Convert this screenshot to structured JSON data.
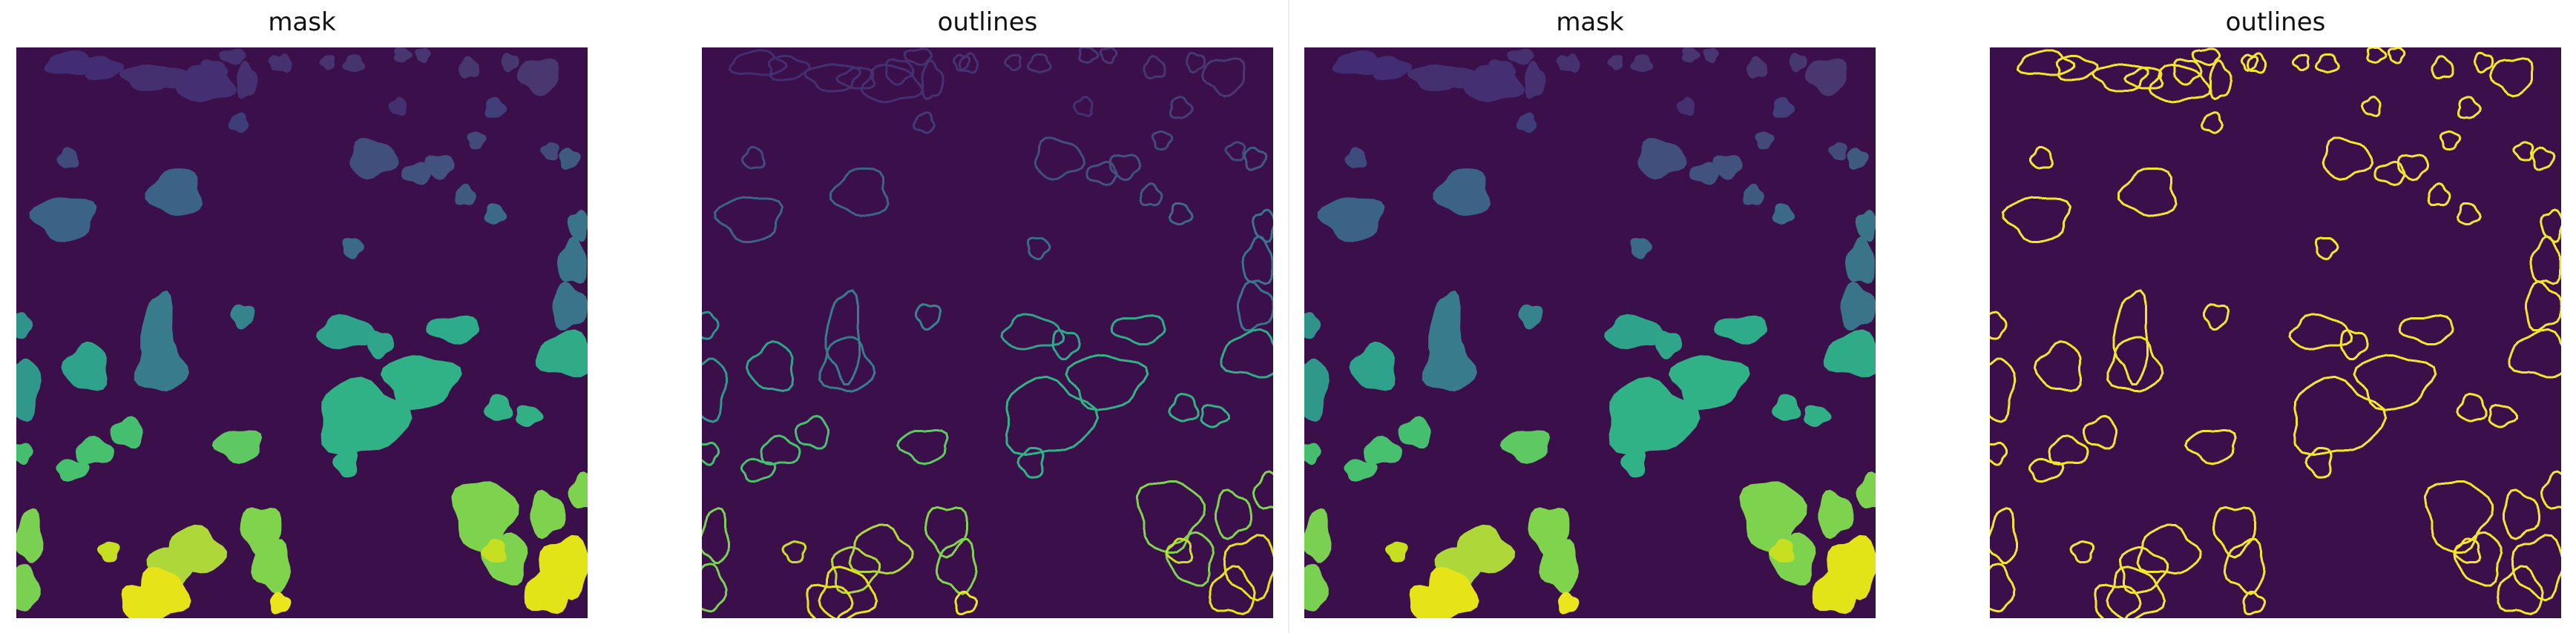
{
  "figure": {
    "panels": [
      {
        "title": "mask",
        "kind": "mask"
      },
      {
        "title": "outlines",
        "kind": "outline-viridis"
      },
      {
        "title": "mask",
        "kind": "mask"
      },
      {
        "title": "outlines",
        "kind": "outline-yellow"
      }
    ],
    "colors": {
      "background": "#3b0f4a",
      "yellow_outline": "#f3e52a"
    }
  }
}
